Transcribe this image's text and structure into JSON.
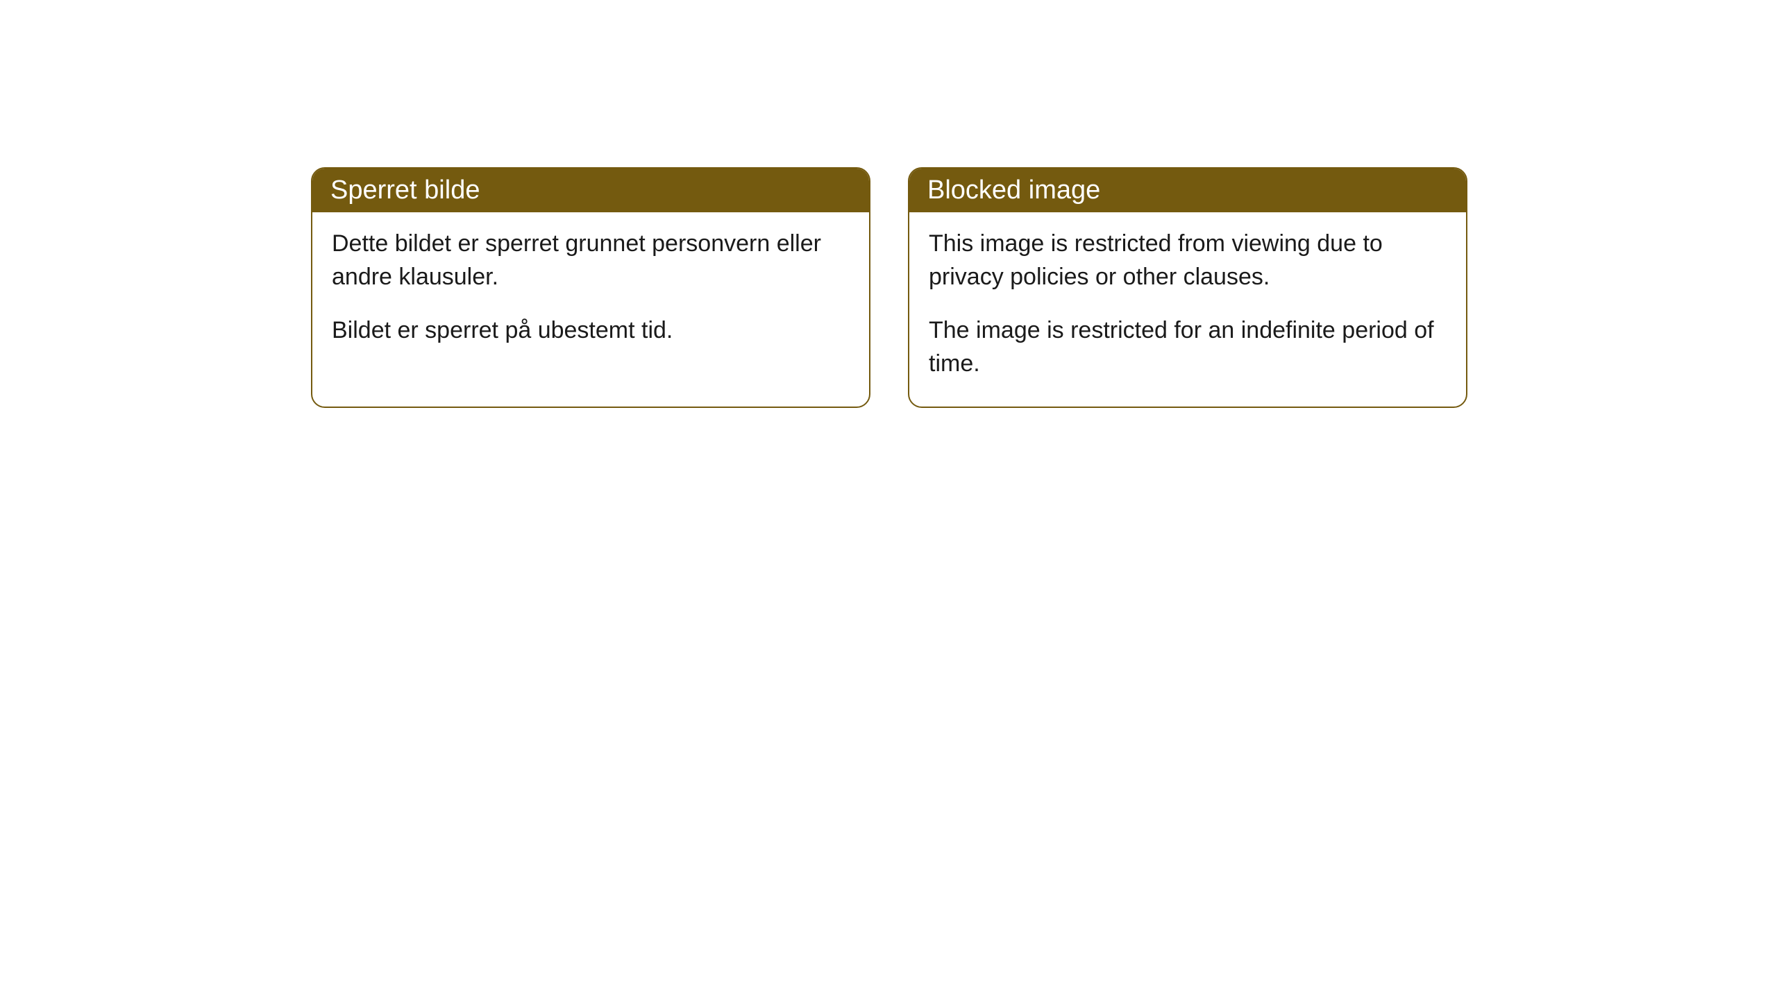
{
  "cards": [
    {
      "title": "Sperret bilde",
      "paragraph1": "Dette bildet er sperret grunnet personvern eller andre klausuler.",
      "paragraph2": "Bildet er sperret på ubestemt tid."
    },
    {
      "title": "Blocked image",
      "paragraph1": "This image is restricted from viewing due to privacy policies or other clauses.",
      "paragraph2": "The image is restricted for an indefinite period of time."
    }
  ],
  "styling": {
    "header_background_color": "#745a0f",
    "header_text_color": "#ffffff",
    "border_color": "#745a0f",
    "body_background_color": "#ffffff",
    "body_text_color": "#1a1a1a",
    "border_radius": 20,
    "header_font_size": 38,
    "body_font_size": 34
  }
}
